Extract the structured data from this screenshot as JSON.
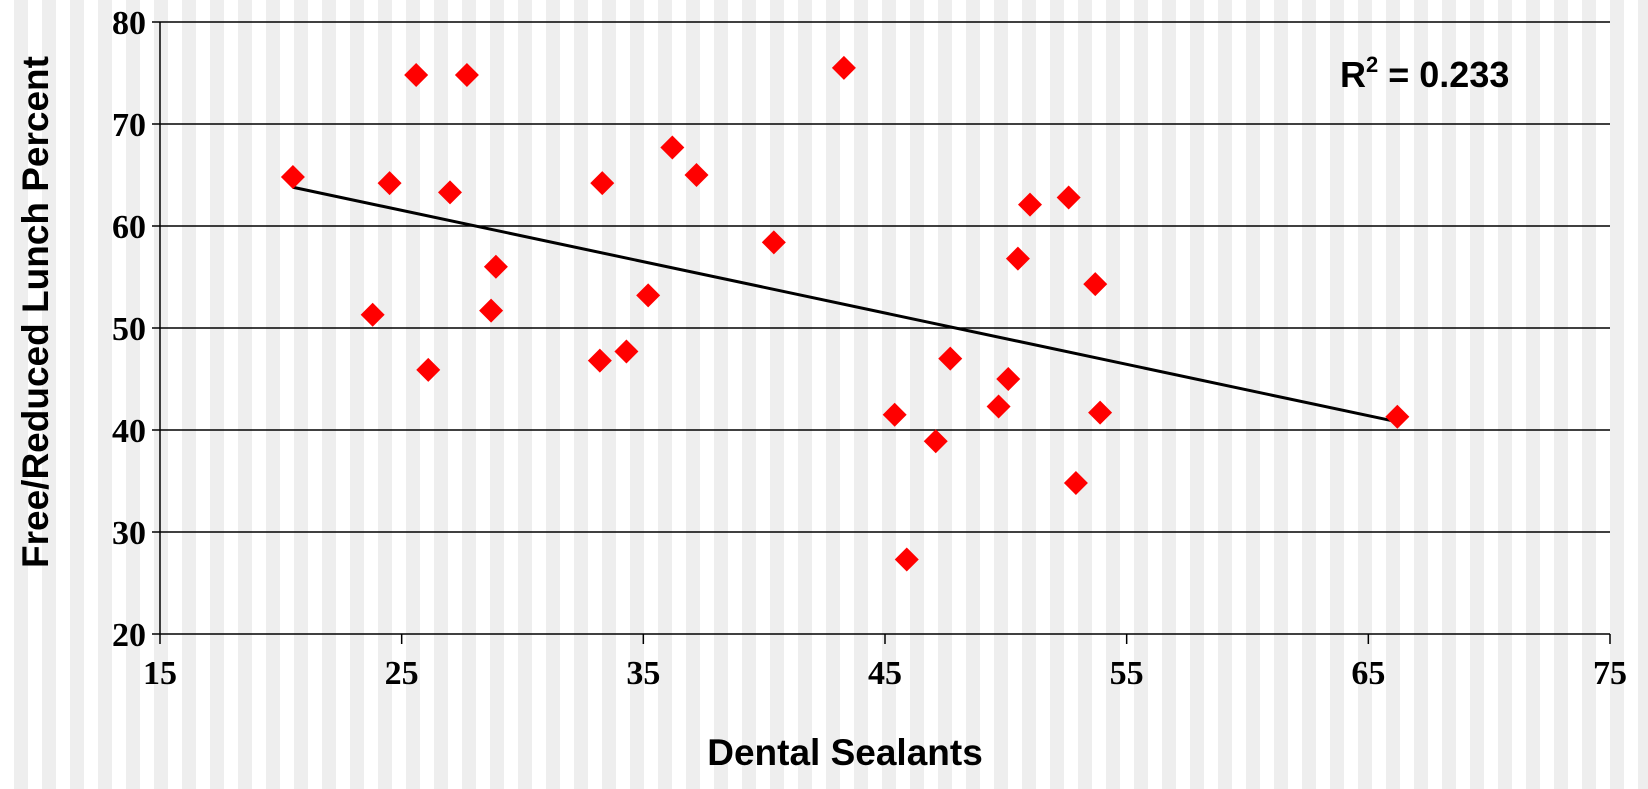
{
  "chart_data": {
    "type": "scatter",
    "xlabel": "Dental Sealants",
    "ylabel": "Free/Reduced Lunch Percent",
    "xlim": [
      15,
      75
    ],
    "ylim": [
      20,
      80
    ],
    "xticks": [
      15,
      25,
      35,
      45,
      55,
      65,
      75
    ],
    "yticks": [
      20,
      30,
      40,
      50,
      60,
      70,
      80
    ],
    "grid": true,
    "annotation": {
      "prefix": "R",
      "superscript": "2",
      "suffix": " = 0.233"
    },
    "colors": {
      "points": "#ff0000",
      "trendline": "#000000",
      "gridlines": "#000000"
    },
    "series": [
      {
        "x": [
          20.5,
          23.8,
          24.5,
          25.6,
          26.1,
          27.0,
          27.7,
          28.7,
          28.9,
          33.2,
          33.3,
          34.3,
          35.2,
          36.2,
          37.2,
          40.4,
          43.3,
          45.4,
          45.9,
          47.1,
          47.7,
          49.7,
          50.1,
          50.5,
          51.0,
          52.6,
          52.9,
          53.7,
          53.9,
          66.2
        ],
        "y": [
          64.8,
          51.3,
          64.2,
          74.8,
          45.9,
          63.3,
          74.8,
          51.7,
          56.0,
          46.8,
          64.2,
          47.7,
          53.2,
          67.7,
          65.0,
          58.4,
          75.5,
          41.5,
          27.3,
          38.9,
          47.0,
          42.3,
          45.0,
          56.8,
          62.1,
          62.8,
          34.8,
          54.3,
          41.7,
          41.3
        ]
      }
    ],
    "trendline": {
      "x": [
        20.5,
        66.2
      ],
      "y": [
        63.8,
        40.8
      ]
    }
  }
}
